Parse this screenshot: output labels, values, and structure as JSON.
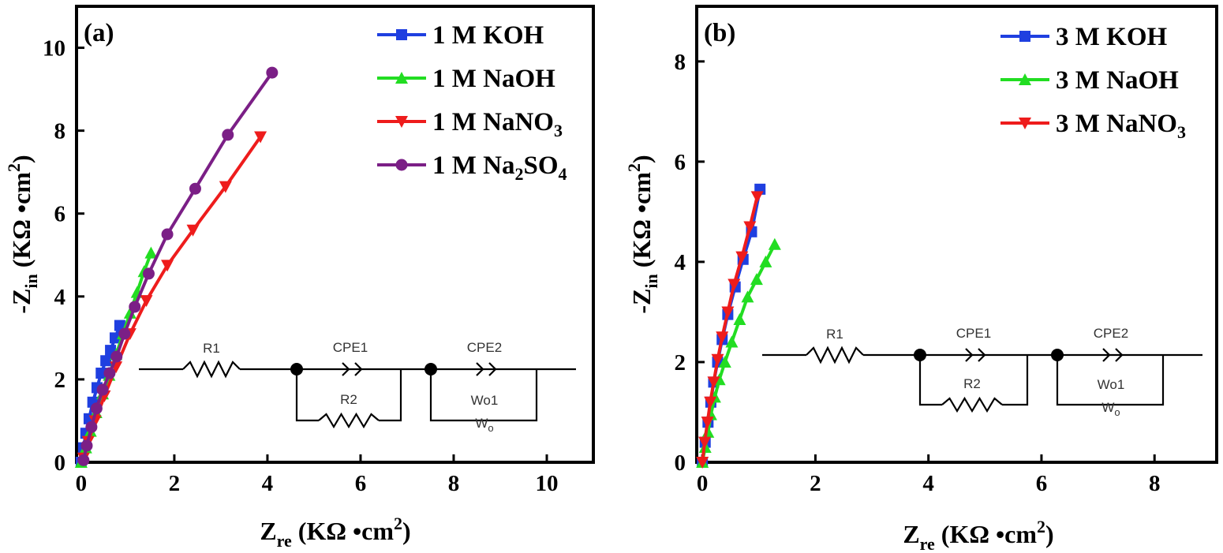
{
  "chart_data": [
    {
      "type": "scatter",
      "panel_label": "(a)",
      "xlabel_main": "Z",
      "xlabel_sub": "re",
      "xlabel_unit": " (KΩ •cm",
      "xlabel_sup": "2",
      "xlabel_close": ")",
      "ylabel_main": "-Z",
      "ylabel_sub": "in",
      "ylabel_unit": " (KΩ •cm",
      "ylabel_sup": "2",
      "ylabel_close": ")",
      "xlim": [
        -0.1,
        11.0
      ],
      "ylim": [
        0,
        11.0
      ],
      "xticks": [
        0,
        2,
        4,
        6,
        8,
        10
      ],
      "yticks": [
        0,
        2,
        4,
        6,
        8,
        10
      ],
      "legend_position": "top-right",
      "series": [
        {
          "name": "1 M KOH",
          "color": "#1f3fe0",
          "marker": "square",
          "x": [
            0.0,
            0.05,
            0.1,
            0.17,
            0.25,
            0.34,
            0.43,
            0.53,
            0.63,
            0.73,
            0.83
          ],
          "y": [
            0.0,
            0.35,
            0.7,
            1.05,
            1.45,
            1.8,
            2.15,
            2.45,
            2.7,
            3.0,
            3.3
          ]
        },
        {
          "name": "1 M NaOH",
          "color": "#22dd22",
          "marker": "triangle-up",
          "x": [
            0.0,
            0.1,
            0.2,
            0.32,
            0.46,
            0.6,
            0.75,
            0.9,
            1.05,
            1.2,
            1.35,
            1.5
          ],
          "y": [
            0.0,
            0.35,
            0.75,
            1.2,
            1.65,
            2.1,
            2.6,
            3.1,
            3.6,
            4.1,
            4.6,
            5.05
          ]
        },
        {
          "name": "1 M NaNO",
          "name_sub": "3",
          "color": "#ee1c1c",
          "marker": "triangle-down",
          "x": [
            0.05,
            0.15,
            0.3,
            0.5,
            0.75,
            1.05,
            1.4,
            1.85,
            2.4,
            3.1,
            3.85
          ],
          "y": [
            0.1,
            0.5,
            1.0,
            1.6,
            2.3,
            3.1,
            3.9,
            4.75,
            5.6,
            6.65,
            7.85
          ]
        },
        {
          "name": "1 M Na",
          "name_sub": "2",
          "name_mid": "SO",
          "name_sub2": "4",
          "color": "#7b1f86",
          "marker": "circle",
          "x": [
            0.05,
            0.12,
            0.22,
            0.33,
            0.46,
            0.61,
            0.76,
            0.93,
            1.15,
            1.45,
            1.85,
            2.45,
            3.15,
            4.1
          ],
          "y": [
            0.05,
            0.4,
            0.85,
            1.3,
            1.75,
            2.15,
            2.55,
            3.1,
            3.75,
            4.55,
            5.5,
            6.6,
            7.9,
            9.4
          ]
        }
      ],
      "circuit": {
        "labels": [
          "R1",
          "CPE1",
          "CPE2",
          "R2",
          "Wo1"
        ],
        "wo_symbol": "W",
        "wo_sub": "o"
      }
    },
    {
      "type": "scatter",
      "panel_label": "(b)",
      "xlabel_main": "Z",
      "xlabel_sub": "re",
      "xlabel_unit": " (KΩ •cm",
      "xlabel_sup": "2",
      "xlabel_close": ")",
      "ylabel_main": "-Z",
      "ylabel_sub": "in",
      "ylabel_unit": " (KΩ •cm",
      "ylabel_sup": "2",
      "ylabel_close": ")",
      "xlim": [
        -0.1,
        9.1
      ],
      "ylim": [
        0,
        9.1
      ],
      "xticks": [
        0,
        2,
        4,
        6,
        8
      ],
      "yticks": [
        0,
        2,
        4,
        6,
        8
      ],
      "legend_position": "top-right",
      "series": [
        {
          "name": "3 M KOH",
          "color": "#1f3fe0",
          "marker": "square",
          "x": [
            0.0,
            0.05,
            0.1,
            0.15,
            0.2,
            0.27,
            0.35,
            0.45,
            0.58,
            0.72,
            0.87,
            1.02
          ],
          "y": [
            0.0,
            0.4,
            0.8,
            1.2,
            1.6,
            2.0,
            2.45,
            2.95,
            3.5,
            4.05,
            4.6,
            5.45
          ]
        },
        {
          "name": "3 M NaOH",
          "color": "#22dd22",
          "marker": "triangle-up",
          "x": [
            0.0,
            0.05,
            0.1,
            0.15,
            0.22,
            0.3,
            0.4,
            0.52,
            0.66,
            0.8,
            0.96,
            1.12,
            1.28
          ],
          "y": [
            0.0,
            0.3,
            0.6,
            0.95,
            1.3,
            1.65,
            2.0,
            2.4,
            2.85,
            3.3,
            3.65,
            4.0,
            4.35
          ]
        },
        {
          "name": "3  M NaNO",
          "name_sub": "3",
          "color": "#ee1c1c",
          "marker": "triangle-down",
          "x": [
            0.0,
            0.04,
            0.09,
            0.14,
            0.2,
            0.27,
            0.35,
            0.45,
            0.56,
            0.7,
            0.84,
            0.97
          ],
          "y": [
            0.0,
            0.4,
            0.8,
            1.2,
            1.6,
            2.05,
            2.5,
            3.0,
            3.55,
            4.1,
            4.7,
            5.3
          ]
        }
      ],
      "circuit": {
        "labels": [
          "R1",
          "CPE1",
          "CPE2",
          "R2",
          "Wo1"
        ],
        "wo_symbol": "W",
        "wo_sub": "o"
      }
    }
  ]
}
